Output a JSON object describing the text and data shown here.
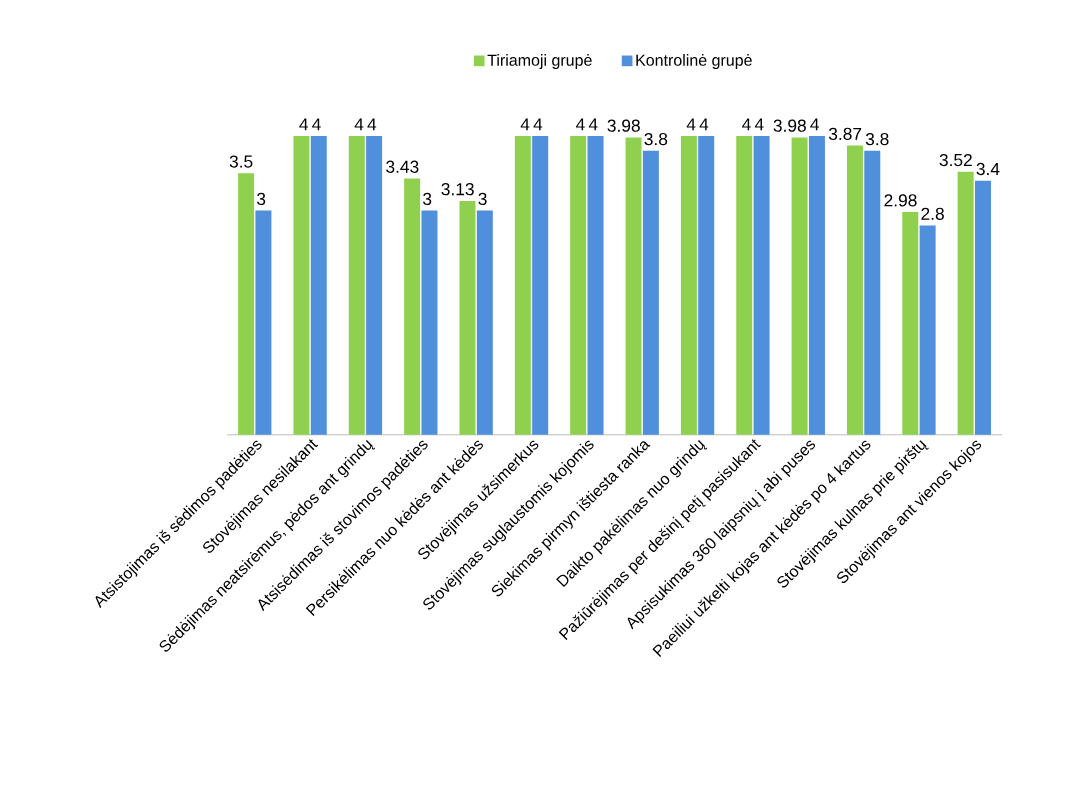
{
  "chart_data": {
    "type": "bar",
    "categories": [
      "Atsistojimas iš sėdimos padėties",
      "Stovėjimas nesilakant",
      "Sėdėjimas neatsirėmus, pėdos ant grindų",
      "Atsisėdimas iš stovimos padėties",
      "Persikėlimas nuo kėdės ant kėdės",
      "Stovėjimas užsimerkus",
      "Stovėjimas suglaustomis kojomis",
      "Siekimas pirmyn ištiesta ranka",
      "Daikto pakėlimas nuo grindų",
      "Pažiūrėjimas per dešinį petį pasisukant",
      "Apsisukimas 360 laipsnių į abi puses",
      "Paeiliui užkelti kojas ant kėdės po 4 kartus",
      "Stovėjimas kulnas prie pirštų",
      "Stovėjimas ant vienos kojos"
    ],
    "series": [
      {
        "name": "Tiriamoji grupė",
        "color": "#8fd14f",
        "values": [
          3.5,
          4,
          4,
          3.43,
          3.13,
          4,
          4,
          3.98,
          4,
          4,
          3.98,
          3.87,
          2.98,
          3.52
        ]
      },
      {
        "name": "Kontrolinė grupė",
        "color": "#4f8fdb",
        "values": [
          3,
          4,
          4,
          3,
          3,
          4,
          4,
          3.8,
          4,
          4,
          4,
          3.8,
          2.8,
          3.4
        ]
      }
    ],
    "data_labels": true,
    "legend": "top"
  }
}
